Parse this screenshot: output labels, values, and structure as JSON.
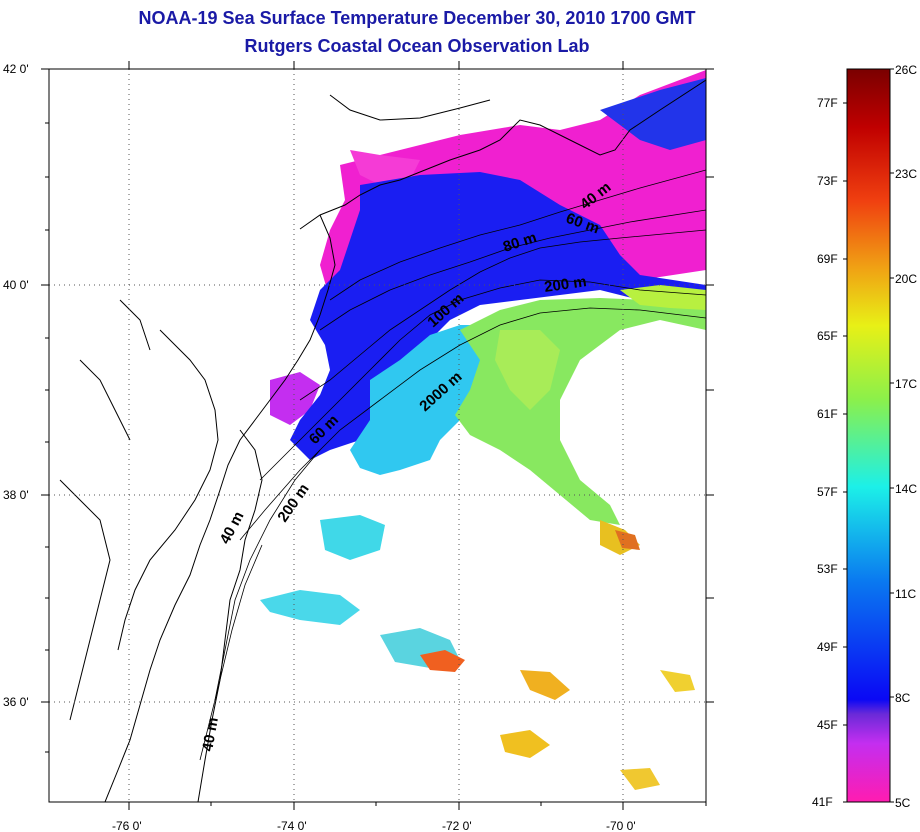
{
  "title": {
    "line1": "NOAA-19 Sea Surface Temperature December 30, 2010 1700 GMT",
    "line2": "Rutgers Coastal Ocean Observation Lab"
  },
  "map": {
    "lon_labels": [
      "-76 0'",
      "-74 0'",
      "-72 0'",
      "-70 0'"
    ],
    "lat_labels": [
      "42 0'",
      "40 0'",
      "38 0'",
      "36 0'"
    ],
    "contour_labels": [
      "40 m",
      "60 m",
      "80 m",
      "200 m",
      "100 m",
      "2000 m",
      "60 m",
      "200 m",
      "40 m",
      "40 m"
    ]
  },
  "colorbar": {
    "celsius_labels": [
      "26C",
      "23C",
      "20C",
      "17C",
      "14C",
      "11C",
      "8C",
      "5C"
    ],
    "fahrenheit_labels": [
      "77F",
      "73F",
      "69F",
      "65F",
      "61F",
      "57F",
      "53F",
      "49F",
      "45F",
      "41F"
    ],
    "range_c": [
      5,
      26
    ],
    "colors": [
      "#ff1cb0",
      "#c42ef0",
      "#6a2ad8",
      "#0a08f5",
      "#0a78f0",
      "#1cf0e8",
      "#8cf04a",
      "#e8f016",
      "#f0a014",
      "#f04010",
      "#c00000",
      "#7a0000"
    ]
  }
}
